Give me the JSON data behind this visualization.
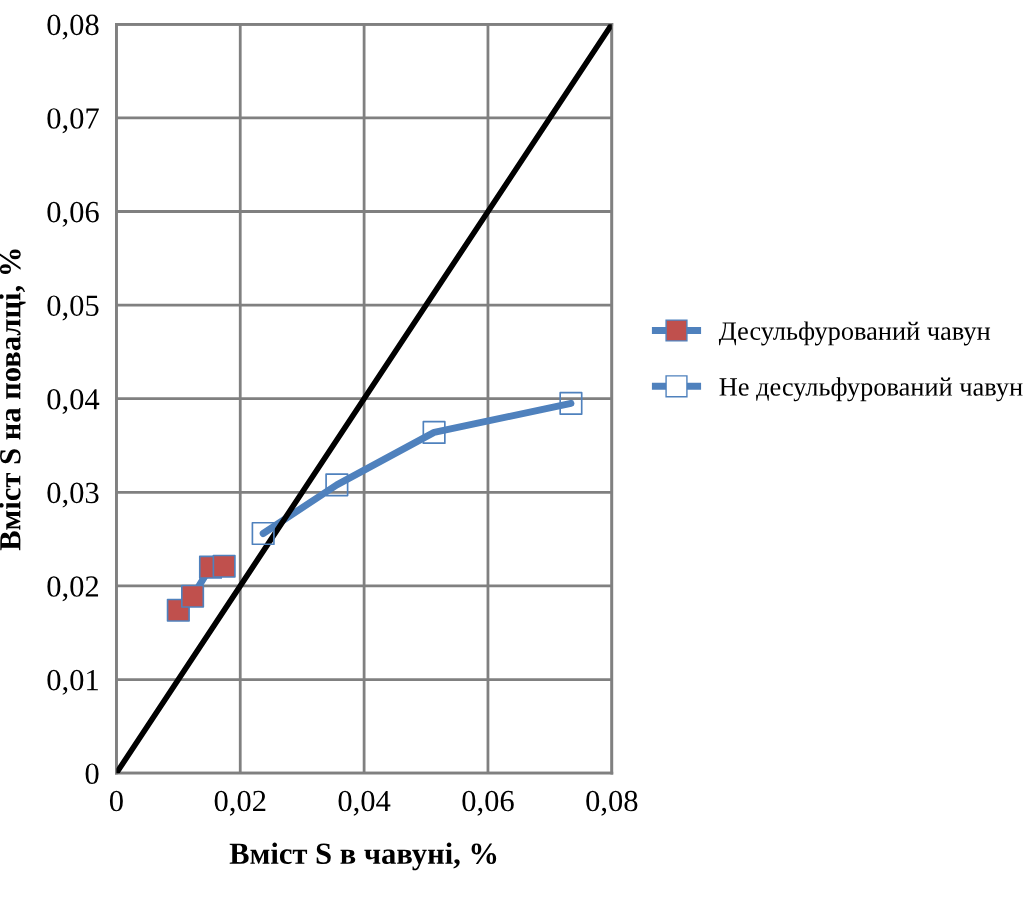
{
  "chart_data": {
    "type": "line",
    "xlabel": "Вміст S в чавуні, %",
    "ylabel": "Вміст S на повалці, %",
    "series": [
      {
        "name": "Десульфурований чавун",
        "color": "#4f81bd",
        "colors": [
          "#c0504d",
          "#c0504d",
          "#c0504d",
          "#c0504d"
        ],
        "marker": "square",
        "x": [
          0.01,
          0.0123,
          0.0152,
          0.0174
        ],
        "values": [
          0.0174,
          0.0189,
          0.022,
          0.0221
        ]
      },
      {
        "name": "Не десульфурований чавун",
        "color": "#4f81bd",
        "marker": "square",
        "x": [
          0.0237,
          0.0356,
          0.0513,
          0.0734
        ],
        "values": [
          0.0256,
          0.0308,
          0.0364,
          0.0395
        ]
      },
      {
        "color": "#000000",
        "marker": "none",
        "x": [
          0,
          0.08
        ],
        "values": [
          0,
          0.08
        ]
      }
    ],
    "xlim": [
      0,
      0.08
    ],
    "ylim": [
      0,
      0.08
    ],
    "xticks": [
      0,
      {
        "value": 0.02,
        "label": "0,02"
      },
      {
        "value": 0.04,
        "label": "0,04"
      },
      {
        "value": 0.06,
        "label": "0,06"
      },
      {
        "value": 0.08,
        "label": "0,08"
      }
    ],
    "yticks": [
      0,
      {
        "value": 0.01,
        "label": "0,01"
      },
      {
        "value": 0.02,
        "label": "0,02"
      },
      {
        "value": 0.03,
        "label": "0,03"
      },
      {
        "value": 0.04,
        "label": "0,04"
      },
      {
        "value": 0.05,
        "label": "0,05"
      },
      {
        "value": 0.06,
        "label": "0,06"
      },
      {
        "value": 0.07,
        "label": "0,07"
      },
      {
        "value": 0.08,
        "label": "0,08"
      }
    ],
    "grid": true,
    "legend": "right"
  }
}
